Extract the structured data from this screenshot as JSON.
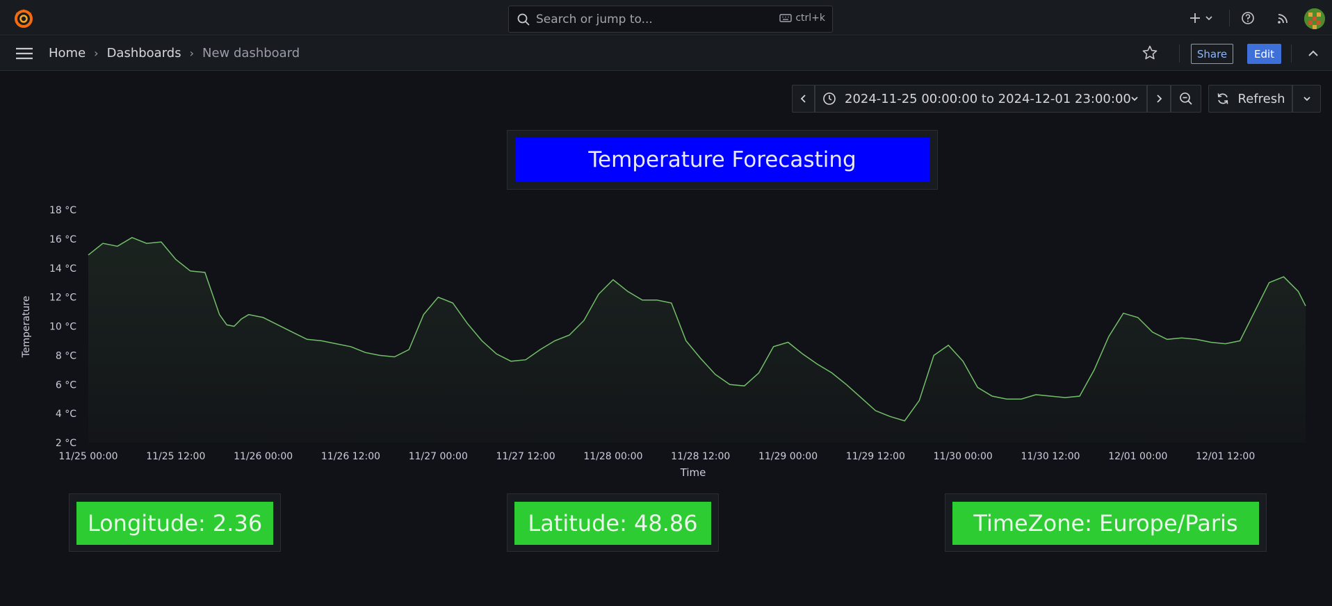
{
  "topbar": {
    "search_placeholder": "Search or jump to...",
    "search_shortcut": "ctrl+k",
    "icons": [
      "grafana-logo-icon",
      "search-icon",
      "keyboard-icon",
      "plus-icon",
      "chevron-down-icon",
      "help-icon",
      "rss-icon",
      "avatar"
    ]
  },
  "nav": {
    "breadcrumbs": [
      "Home",
      "Dashboards",
      "New dashboard"
    ],
    "share_label": "Share",
    "edit_label": "Edit"
  },
  "time_picker": {
    "range_label": "2024-11-25 00:00:00 to 2024-12-01 23:00:00",
    "refresh_label": "Refresh"
  },
  "title_panel": {
    "text": "Temperature Forecasting",
    "bg_color": "#0000ff"
  },
  "stats": [
    {
      "text": "Longitude: 2.36"
    },
    {
      "text": "Latitude: 48.86"
    },
    {
      "text": "TimeZone: Europe/Paris"
    }
  ],
  "colors": {
    "stat_bg": "#2ecc33",
    "line": "#73bf69",
    "accent_blue": "#3d71d9"
  },
  "chart_data": {
    "type": "line",
    "xlabel": "Time",
    "ylabel": "Temperature",
    "ylim": [
      2,
      18
    ],
    "y_ticks": [
      "18 °C",
      "16 °C",
      "14 °C",
      "12 °C",
      "10 °C",
      "8 °C",
      "6 °C",
      "4 °C",
      "2 °C"
    ],
    "x_ticks": [
      "11/25 00:00",
      "11/25 12:00",
      "11/26 00:00",
      "11/26 12:00",
      "11/27 00:00",
      "11/27 12:00",
      "11/28 00:00",
      "11/28 12:00",
      "11/29 00:00",
      "11/29 12:00",
      "11/30 00:00",
      "11/30 12:00",
      "12/01 00:00",
      "12/01 12:00"
    ],
    "x_range_hours": [
      0,
      167
    ],
    "grid": false,
    "legend": "none",
    "series": [
      {
        "x": [
          0,
          2,
          4,
          6,
          8,
          10,
          12,
          14,
          16,
          18,
          19,
          20,
          21,
          22,
          24,
          26,
          28,
          30,
          32,
          34,
          36,
          38,
          40,
          42,
          44,
          46,
          48,
          50,
          52,
          54,
          56,
          58,
          60,
          62,
          64,
          66,
          68,
          70,
          72,
          74,
          76,
          78,
          80,
          82,
          84,
          86,
          88,
          90,
          92,
          94,
          96,
          98,
          100,
          102,
          104,
          106,
          108,
          110,
          112,
          114,
          116,
          118,
          120,
          122,
          124,
          126,
          128,
          130,
          132,
          134,
          136,
          138,
          140,
          142,
          144,
          146,
          148,
          150,
          152,
          154,
          156,
          158,
          160,
          162,
          164,
          166,
          167
        ],
        "y": [
          14.9,
          15.7,
          15.5,
          16.1,
          15.7,
          15.8,
          14.6,
          13.8,
          13.7,
          10.8,
          10.1,
          10.0,
          10.5,
          10.8,
          10.6,
          10.1,
          9.6,
          9.1,
          9.0,
          8.8,
          8.6,
          8.2,
          8.0,
          7.9,
          8.4,
          10.8,
          12.0,
          11.6,
          10.2,
          9.0,
          8.1,
          7.6,
          7.7,
          8.4,
          9.0,
          9.4,
          10.4,
          12.2,
          13.2,
          12.4,
          11.8,
          11.8,
          11.6,
          9.0,
          7.8,
          6.7,
          6.0,
          5.9,
          6.8,
          8.6,
          8.9,
          8.1,
          7.4,
          6.8,
          6.0,
          5.1,
          4.2,
          3.8,
          3.5,
          4.9,
          8.0,
          8.7,
          7.6,
          5.8,
          5.2,
          5.0,
          5.0,
          5.3,
          5.2,
          5.1,
          5.2,
          7.0,
          9.3,
          10.9,
          10.6,
          9.6,
          9.1,
          9.2,
          9.1,
          8.9,
          8.8,
          9.0,
          11.0,
          13.0,
          13.4,
          12.4,
          11.4
        ]
      }
    ]
  }
}
